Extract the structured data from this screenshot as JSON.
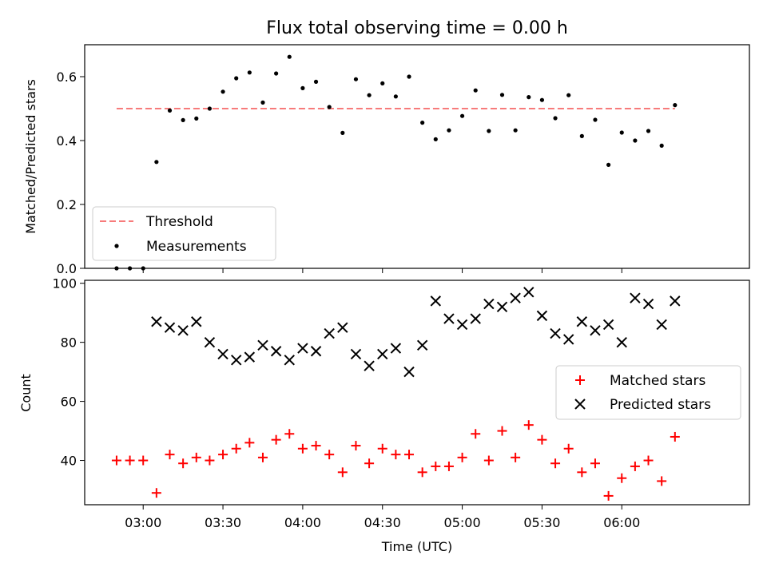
{
  "chart_data": [
    {
      "type": "scatter",
      "title": "Flux total observing time = 0.00 h",
      "xlabel": "",
      "ylabel": "Matched/Predicted stars",
      "ylim": [
        0,
        0.7
      ],
      "xlim": [
        "02:38",
        "06:48"
      ],
      "yticks": [
        "0.0",
        "0.2",
        "0.4",
        "0.6"
      ],
      "grid": false,
      "legend_position": "lower-left",
      "x": [
        "02:50",
        "02:55",
        "03:00",
        "03:05",
        "03:10",
        "03:15",
        "03:20",
        "03:25",
        "03:30",
        "03:35",
        "03:40",
        "03:45",
        "03:50",
        "03:55",
        "04:00",
        "04:05",
        "04:10",
        "04:15",
        "04:20",
        "04:25",
        "04:30",
        "04:35",
        "04:40",
        "04:45",
        "04:50",
        "04:55",
        "05:00",
        "05:05",
        "05:10",
        "05:15",
        "05:20",
        "05:25",
        "05:30",
        "05:35",
        "05:40",
        "05:45",
        "05:50",
        "05:55",
        "06:00",
        "06:05",
        "06:10",
        "06:15",
        "06:20"
      ],
      "series": [
        {
          "name": "Threshold",
          "style": "dashed-line",
          "color": "#f77b7b",
          "x": [
            "02:50",
            "06:20"
          ],
          "values": [
            0.5,
            0.5
          ]
        },
        {
          "name": "Measurements",
          "style": "dots",
          "color": "#000000",
          "values": [
            0.0,
            0.0,
            0.0,
            0.333,
            0.494,
            0.464,
            0.469,
            0.5,
            0.553,
            0.595,
            0.613,
            0.519,
            0.61,
            0.662,
            0.564,
            0.584,
            0.505,
            0.424,
            0.592,
            0.542,
            0.579,
            0.538,
            0.6,
            0.456,
            0.404,
            0.432,
            0.477,
            0.557,
            0.43,
            0.543,
            0.432,
            0.536,
            0.527,
            0.47,
            0.542,
            0.414,
            0.465,
            0.324,
            0.425,
            0.4,
            0.43,
            0.384,
            0.511
          ]
        }
      ]
    },
    {
      "type": "scatter",
      "title": "",
      "xlabel": "Time (UTC)",
      "ylabel": "Count",
      "ylim": [
        25,
        101
      ],
      "xlim": [
        "02:38",
        "06:48"
      ],
      "yticks": [
        "40",
        "60",
        "80",
        "100"
      ],
      "xticks": [
        "03:00",
        "03:30",
        "04:00",
        "04:30",
        "05:00",
        "05:30",
        "06:00"
      ],
      "grid": false,
      "legend_position": "center-right",
      "x": [
        "02:50",
        "02:55",
        "03:00",
        "03:05",
        "03:10",
        "03:15",
        "03:20",
        "03:25",
        "03:30",
        "03:35",
        "03:40",
        "03:45",
        "03:50",
        "03:55",
        "04:00",
        "04:05",
        "04:10",
        "04:15",
        "04:20",
        "04:25",
        "04:30",
        "04:35",
        "04:40",
        "04:45",
        "04:50",
        "04:55",
        "05:00",
        "05:05",
        "05:10",
        "05:15",
        "05:20",
        "05:25",
        "05:30",
        "05:35",
        "05:40",
        "05:45",
        "05:50",
        "05:55",
        "06:00",
        "06:05",
        "06:10",
        "06:15",
        "06:20"
      ],
      "series": [
        {
          "name": "Matched stars",
          "marker": "plus",
          "color": "#ff0000",
          "values": [
            40,
            40,
            40,
            29,
            42,
            39,
            41,
            40,
            42,
            44,
            46,
            41,
            47,
            49,
            44,
            45,
            42,
            36,
            45,
            39,
            44,
            42,
            42,
            36,
            38,
            38,
            41,
            49,
            40,
            50,
            41,
            52,
            47,
            39,
            44,
            36,
            39,
            28,
            34,
            38,
            40,
            33,
            48
          ]
        },
        {
          "name": "Predicted stars",
          "marker": "x",
          "color": "#000000",
          "values": [
            null,
            null,
            null,
            87,
            85,
            84,
            87,
            80,
            76,
            74,
            75,
            79,
            77,
            74,
            78,
            77,
            83,
            85,
            76,
            72,
            76,
            78,
            70,
            79,
            94,
            88,
            86,
            88,
            93,
            92,
            95,
            97,
            89,
            83,
            81,
            87,
            84,
            86,
            80,
            95,
            93,
            86,
            94
          ]
        }
      ]
    }
  ]
}
